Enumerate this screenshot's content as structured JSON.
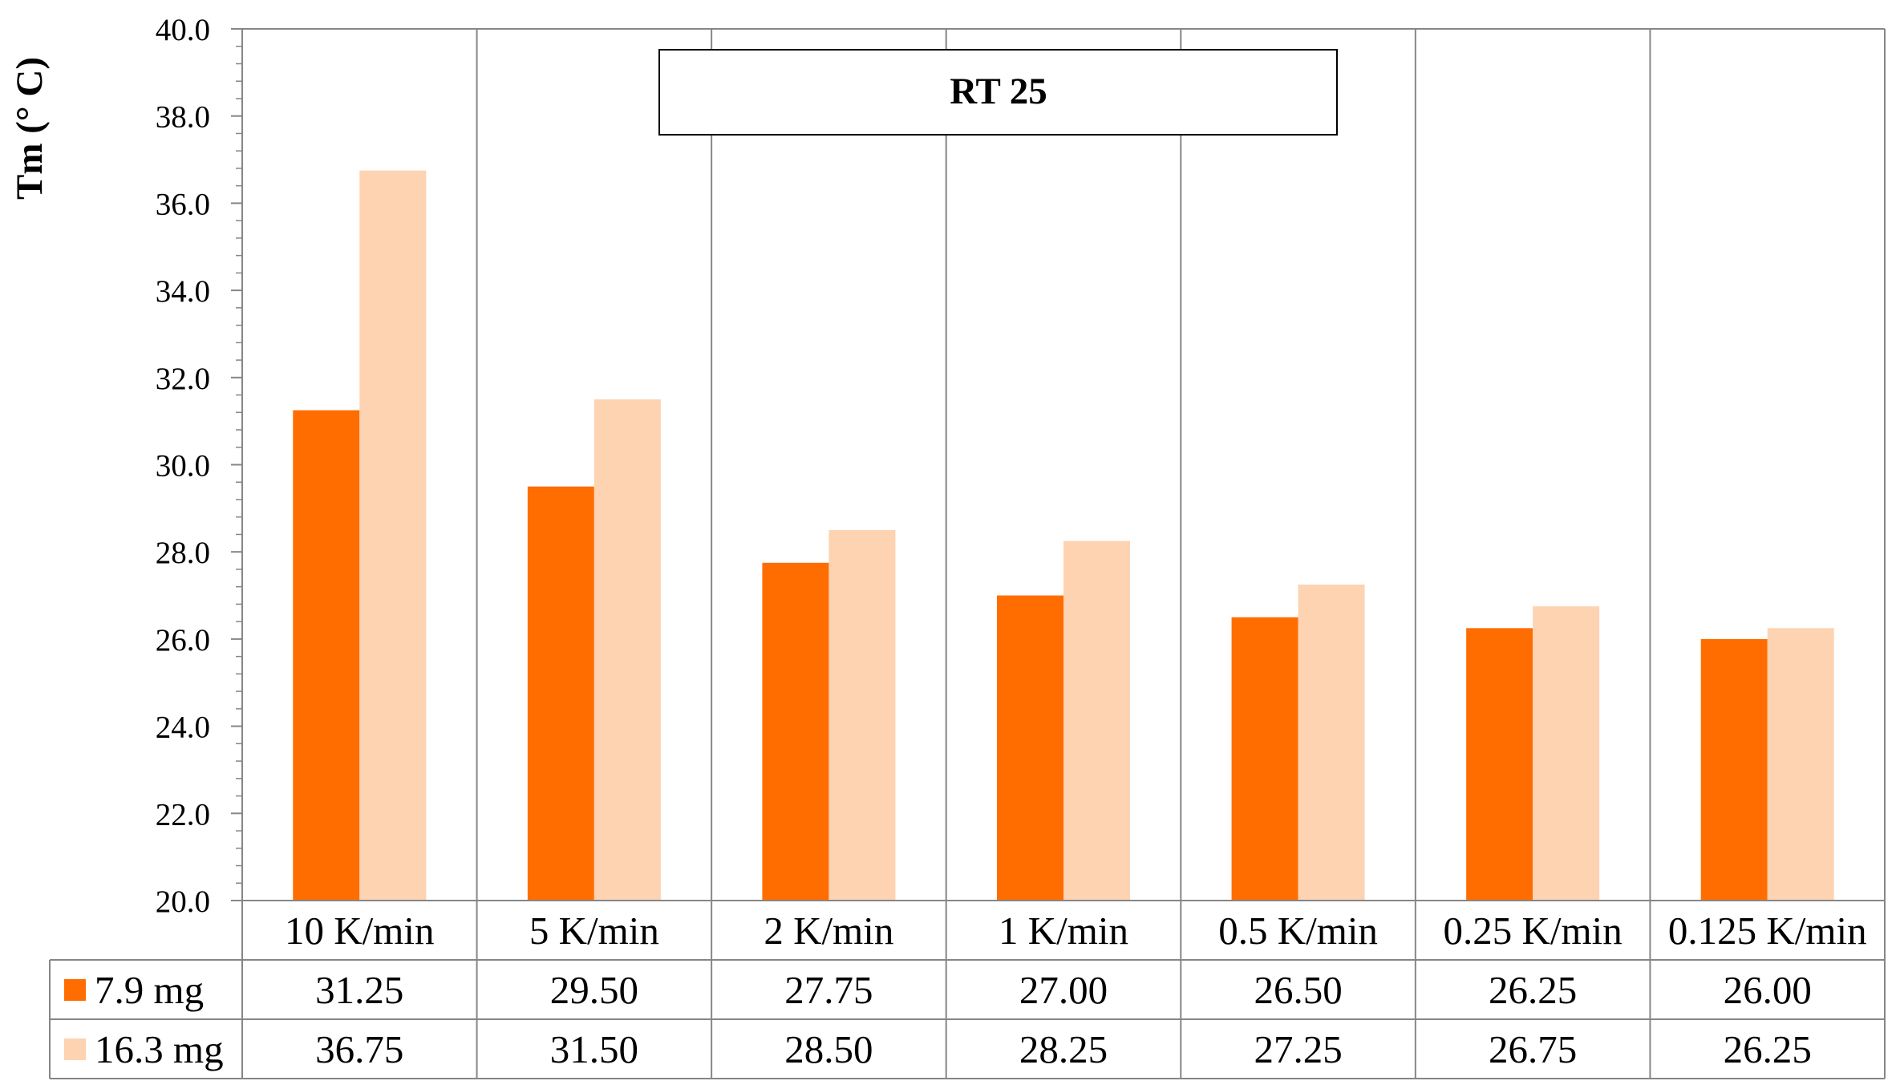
{
  "chart_data": {
    "type": "bar",
    "title": "RT 25",
    "ylabel": "Tm (° C)",
    "xlabel": "",
    "ylim": [
      20,
      40
    ],
    "ytick_step": 2,
    "ytick_labels": [
      "20.0",
      "22.0",
      "24.0",
      "26.0",
      "28.0",
      "30.0",
      "32.0",
      "34.0",
      "36.0",
      "38.0",
      "40.0"
    ],
    "categories": [
      "10 K/min",
      "5 K/min",
      "2 K/min",
      "1 K/min",
      "0.5 K/min",
      "0.25 K/min",
      "0.125 K/min"
    ],
    "series": [
      {
        "name": "7.9 mg",
        "color": "#FF6D00",
        "values": [
          31.25,
          29.5,
          27.75,
          27.0,
          26.5,
          26.25,
          26.0
        ],
        "value_labels": [
          "31.25",
          "29.50",
          "27.75",
          "27.00",
          "26.50",
          "26.25",
          "26.00"
        ]
      },
      {
        "name": "16.3 mg",
        "color": "#FDD3B2",
        "values": [
          36.75,
          31.5,
          28.5,
          28.25,
          27.25,
          26.75,
          26.25
        ],
        "value_labels": [
          "36.75",
          "31.50",
          "28.50",
          "28.25",
          "27.25",
          "26.75",
          "26.25"
        ]
      }
    ],
    "grid": "vertical",
    "legend": "data-table"
  }
}
